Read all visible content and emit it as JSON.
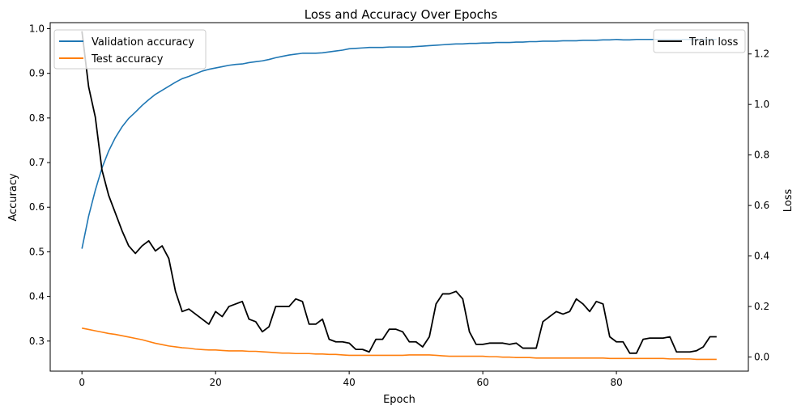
{
  "chart_data": {
    "type": "line",
    "title": "Loss and Accuracy Over Epochs",
    "xlabel": "Epoch",
    "ylabel": "Accuracy",
    "y2label": "Loss",
    "xlim": [
      -4.75,
      99.75
    ],
    "ylim": [
      0.2326,
      1.0136
    ],
    "y2lim": [
      -0.056,
      1.324
    ],
    "x_ticks": [
      0,
      20,
      40,
      60,
      80
    ],
    "x_tick_labels": [
      "0",
      "20",
      "40",
      "60",
      "80"
    ],
    "y_ticks": [
      0.3,
      0.4,
      0.5,
      0.6,
      0.7,
      0.8,
      0.9,
      1.0
    ],
    "y_tick_labels": [
      "0.3",
      "0.4",
      "0.5",
      "0.6",
      "0.7",
      "0.8",
      "0.9",
      "1.0"
    ],
    "y2_ticks": [
      0.0,
      0.2,
      0.4,
      0.6,
      0.8,
      1.0,
      1.2
    ],
    "y2_tick_labels": [
      "0.0",
      "0.2",
      "0.4",
      "0.6",
      "0.8",
      "1.0",
      "1.2"
    ],
    "grid": false,
    "x": [
      0,
      1,
      2,
      3,
      4,
      5,
      6,
      7,
      8,
      9,
      10,
      11,
      12,
      13,
      14,
      15,
      16,
      17,
      18,
      19,
      20,
      21,
      22,
      23,
      24,
      25,
      26,
      27,
      28,
      29,
      30,
      31,
      32,
      33,
      34,
      35,
      36,
      37,
      38,
      39,
      40,
      41,
      42,
      43,
      44,
      45,
      46,
      47,
      48,
      49,
      50,
      51,
      52,
      53,
      54,
      55,
      56,
      57,
      58,
      59,
      60,
      61,
      62,
      63,
      64,
      65,
      66,
      67,
      68,
      69,
      70,
      71,
      72,
      73,
      74,
      75,
      76,
      77,
      78,
      79,
      80,
      81,
      82,
      83,
      84,
      85,
      86,
      87,
      88,
      89,
      90,
      91,
      92,
      93,
      94,
      95
    ],
    "series": [
      {
        "name": "Validation accuracy",
        "axis": "left",
        "color": "#1f77b4",
        "legend": "upper left",
        "values": [
          0.507,
          0.58,
          0.638,
          0.688,
          0.726,
          0.756,
          0.78,
          0.799,
          0.813,
          0.828,
          0.841,
          0.853,
          0.862,
          0.871,
          0.88,
          0.888,
          0.893,
          0.899,
          0.905,
          0.909,
          0.912,
          0.915,
          0.918,
          0.92,
          0.921,
          0.924,
          0.926,
          0.928,
          0.931,
          0.935,
          0.938,
          0.941,
          0.943,
          0.945,
          0.945,
          0.945,
          0.946,
          0.948,
          0.95,
          0.952,
          0.955,
          0.956,
          0.957,
          0.958,
          0.958,
          0.958,
          0.959,
          0.959,
          0.959,
          0.959,
          0.96,
          0.961,
          0.962,
          0.963,
          0.964,
          0.965,
          0.966,
          0.966,
          0.967,
          0.967,
          0.968,
          0.968,
          0.969,
          0.969,
          0.969,
          0.97,
          0.97,
          0.971,
          0.971,
          0.972,
          0.972,
          0.972,
          0.973,
          0.973,
          0.973,
          0.974,
          0.974,
          0.974,
          0.975,
          0.975,
          0.976,
          0.975,
          0.975,
          0.976,
          0.976,
          0.976,
          0.976,
          0.976,
          0.976,
          0.976,
          0.976,
          0.976,
          0.976,
          0.976,
          0.976,
          0.976
        ]
      },
      {
        "name": "Test accuracy",
        "axis": "left",
        "color": "#ff7f0e",
        "legend": "upper left",
        "values": [
          0.329,
          0.326,
          0.323,
          0.32,
          0.317,
          0.315,
          0.312,
          0.309,
          0.306,
          0.303,
          0.299,
          0.295,
          0.292,
          0.289,
          0.287,
          0.285,
          0.284,
          0.282,
          0.281,
          0.28,
          0.28,
          0.279,
          0.278,
          0.278,
          0.278,
          0.277,
          0.277,
          0.276,
          0.275,
          0.274,
          0.273,
          0.273,
          0.272,
          0.272,
          0.272,
          0.271,
          0.271,
          0.27,
          0.27,
          0.269,
          0.268,
          0.268,
          0.268,
          0.268,
          0.268,
          0.268,
          0.268,
          0.268,
          0.268,
          0.269,
          0.269,
          0.269,
          0.269,
          0.268,
          0.267,
          0.266,
          0.266,
          0.266,
          0.266,
          0.266,
          0.266,
          0.265,
          0.265,
          0.264,
          0.264,
          0.263,
          0.263,
          0.263,
          0.262,
          0.262,
          0.262,
          0.262,
          0.262,
          0.262,
          0.262,
          0.262,
          0.262,
          0.262,
          0.262,
          0.261,
          0.261,
          0.261,
          0.261,
          0.261,
          0.261,
          0.261,
          0.261,
          0.261,
          0.26,
          0.26,
          0.26,
          0.26,
          0.259,
          0.259,
          0.259,
          0.259
        ]
      },
      {
        "name": "Train loss",
        "axis": "right",
        "color": "#000000",
        "legend": "upper right",
        "values": [
          1.29,
          1.07,
          0.95,
          0.74,
          0.64,
          0.57,
          0.5,
          0.44,
          0.41,
          0.44,
          0.46,
          0.42,
          0.44,
          0.39,
          0.26,
          0.18,
          0.19,
          0.17,
          0.15,
          0.13,
          0.18,
          0.16,
          0.2,
          0.21,
          0.22,
          0.15,
          0.14,
          0.1,
          0.12,
          0.2,
          0.2,
          0.2,
          0.23,
          0.22,
          0.13,
          0.13,
          0.15,
          0.07,
          0.06,
          0.06,
          0.055,
          0.03,
          0.03,
          0.02,
          0.07,
          0.07,
          0.11,
          0.11,
          0.1,
          0.06,
          0.06,
          0.04,
          0.08,
          0.21,
          0.25,
          0.25,
          0.26,
          0.23,
          0.1,
          0.05,
          0.05,
          0.055,
          0.055,
          0.055,
          0.05,
          0.055,
          0.035,
          0.035,
          0.035,
          0.14,
          0.16,
          0.18,
          0.17,
          0.18,
          0.23,
          0.21,
          0.18,
          0.22,
          0.21,
          0.08,
          0.06,
          0.06,
          0.015,
          0.015,
          0.07,
          0.075,
          0.075,
          0.075,
          0.08,
          0.02,
          0.02,
          0.02,
          0.025,
          0.04,
          0.08,
          0.08
        ]
      }
    ]
  }
}
